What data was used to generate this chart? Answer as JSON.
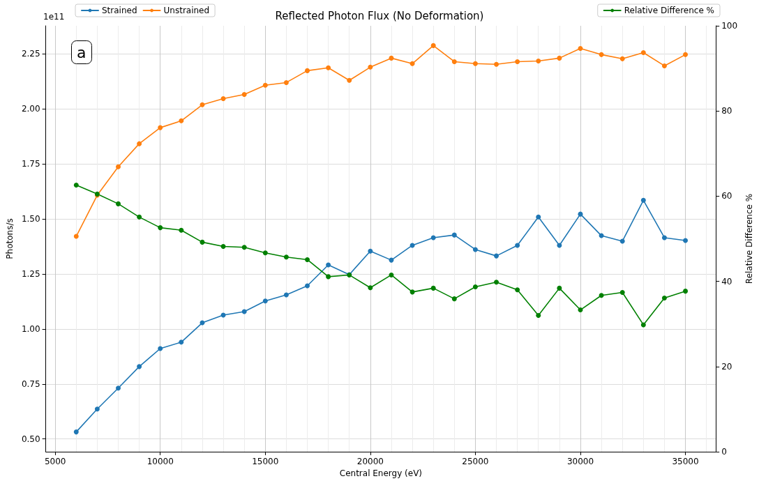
{
  "chart_data": {
    "type": "line",
    "title": "Reflected Photon Flux (No Deformation)",
    "xlabel": "Central Energy (eV)",
    "ylabel": "Photons/s",
    "y2label": "Relative Difference %",
    "annotations": [
      "1e11",
      "a"
    ],
    "x": [
      6000,
      7000,
      8000,
      9000,
      10000,
      11000,
      12000,
      13000,
      14000,
      15000,
      16000,
      17000,
      18000,
      19000,
      20000,
      21000,
      22000,
      23000,
      24000,
      25000,
      26000,
      27000,
      28000,
      29000,
      30000,
      31000,
      32000,
      33000,
      34000,
      35000
    ],
    "series": [
      {
        "name": "Strained",
        "color": "#1f77b4",
        "values": [
          0.532,
          0.636,
          0.731,
          0.829,
          0.911,
          0.94,
          1.028,
          1.063,
          1.079,
          1.127,
          1.155,
          1.196,
          1.291,
          1.247,
          1.354,
          1.313,
          1.38,
          1.415,
          1.427,
          1.361,
          1.332,
          1.38,
          1.509,
          1.38,
          1.522,
          1.424,
          1.399,
          1.585,
          1.415,
          1.402
        ]
      },
      {
        "name": "Unstrained",
        "color": "#ff7f0e",
        "values": [
          1.421,
          1.608,
          1.737,
          1.842,
          1.915,
          1.946,
          2.019,
          2.047,
          2.066,
          2.108,
          2.12,
          2.174,
          2.187,
          2.13,
          2.19,
          2.231,
          2.206,
          2.288,
          2.215,
          2.206,
          2.203,
          2.215,
          2.218,
          2.231,
          2.275,
          2.247,
          2.228,
          2.256,
          2.196,
          2.247
        ]
      },
      {
        "name": "Relative Difference %",
        "color": "#008000",
        "axis": "y2",
        "values": [
          62.6,
          60.5,
          58.2,
          55.1,
          52.6,
          52.0,
          49.2,
          48.2,
          48.0,
          46.7,
          45.7,
          45.1,
          41.1,
          41.5,
          38.5,
          41.5,
          37.5,
          38.4,
          35.9,
          38.7,
          39.8,
          38.0,
          32.0,
          38.4,
          33.3,
          36.7,
          37.4,
          29.8,
          36.1,
          37.7
        ]
      }
    ],
    "xlim": [
      4550,
      36450
    ],
    "xticks": [
      5000,
      10000,
      15000,
      20000,
      25000,
      30000,
      35000
    ],
    "ylim": [
      0.442,
      2.378
    ],
    "yticks": [
      {
        "value": 0.5,
        "label": "0.50"
      },
      {
        "value": 0.75,
        "label": "0.75"
      },
      {
        "value": 1.0,
        "label": "1.00"
      },
      {
        "value": 1.25,
        "label": "1.25"
      },
      {
        "value": 1.5,
        "label": "1.50"
      },
      {
        "value": 1.75,
        "label": "1.75"
      },
      {
        "value": 2.0,
        "label": "2.00"
      },
      {
        "value": 2.25,
        "label": "2.25"
      }
    ],
    "y2lim": [
      0,
      100
    ],
    "y2ticks": [
      0,
      20,
      40,
      60,
      80,
      100
    ],
    "grid": true,
    "legend": "top",
    "marker": "circle",
    "line_style": "solid"
  }
}
